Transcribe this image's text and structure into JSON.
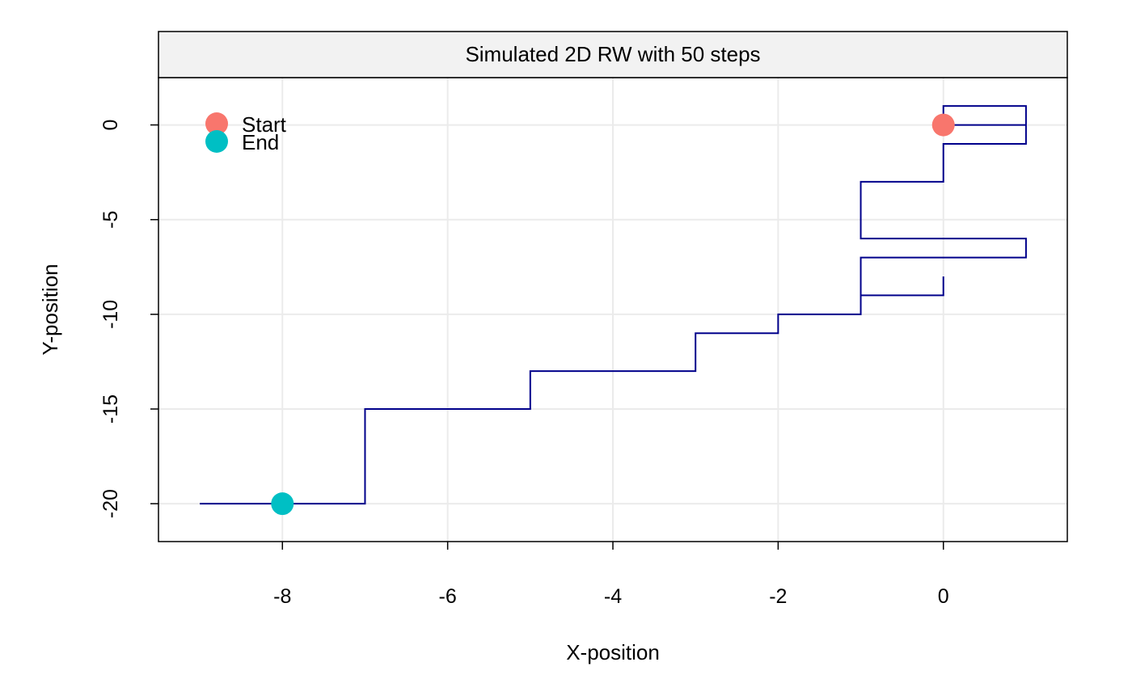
{
  "chart_data": {
    "type": "line",
    "title": "Simulated 2D RW with 50 steps",
    "xlabel": "X-position",
    "ylabel": "Y-position",
    "xlim": [
      -9.5,
      1.5
    ],
    "ylim": [
      -22,
      2.5
    ],
    "xticks": [
      -8,
      -6,
      -4,
      -2,
      0
    ],
    "yticks": [
      0,
      -5,
      -10,
      -15,
      -20
    ],
    "grid": true,
    "legend_position": "top-left",
    "path_color": "#00008b",
    "series": [
      {
        "style": "step",
        "points": [
          [
            0,
            0
          ],
          [
            1,
            0
          ],
          [
            1,
            1
          ],
          [
            0,
            1
          ],
          [
            0,
            0
          ],
          [
            1,
            0
          ],
          [
            1,
            -1
          ],
          [
            0,
            -1
          ],
          [
            0,
            -3
          ],
          [
            -1,
            -3
          ],
          [
            -1,
            -6
          ],
          [
            1,
            -6
          ],
          [
            1,
            -7
          ],
          [
            -1,
            -7
          ],
          [
            -1,
            -9
          ],
          [
            0,
            -9
          ],
          [
            0,
            -8
          ],
          [
            0,
            -9
          ],
          [
            -1,
            -9
          ],
          [
            -1,
            -10
          ],
          [
            -2,
            -10
          ],
          [
            -2,
            -11
          ],
          [
            -3,
            -11
          ],
          [
            -3,
            -13
          ],
          [
            -5,
            -13
          ],
          [
            -5,
            -15
          ],
          [
            -7,
            -15
          ],
          [
            -7,
            -20
          ],
          [
            -9,
            -20
          ],
          [
            -8,
            -20
          ]
        ]
      }
    ],
    "markers": [
      {
        "name": "Start",
        "x": 0,
        "y": 0,
        "color": "#f8766d"
      },
      {
        "name": "End",
        "x": -8,
        "y": -20,
        "color": "#00bfc4"
      }
    ]
  }
}
